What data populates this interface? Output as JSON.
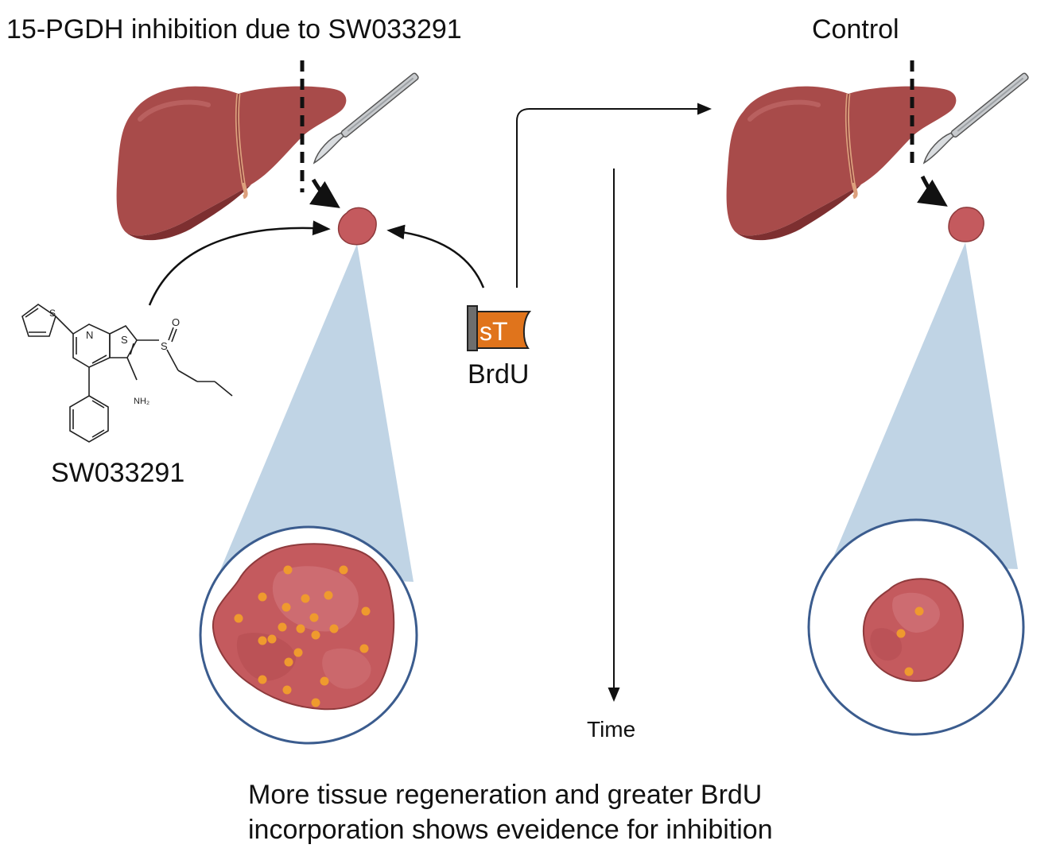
{
  "titles": {
    "treatment": "15-PGDH inhibition due to SW033291",
    "control": "Control"
  },
  "compound": {
    "name": "SW033291",
    "atom_labels": {
      "sulfur_thiophene": "S",
      "nitrogen": "N",
      "sulfur_ring": "S",
      "sulfoxide_s": "S",
      "oxygen": "O",
      "amine": "NH₂"
    }
  },
  "label_tag": {
    "name": "BrdU",
    "glyph": "sT"
  },
  "axis": {
    "label": "Time"
  },
  "caption": {
    "line1": "More tissue regeneration and greater BrdU",
    "line2": "incorporation shows eveidence for inhibition"
  },
  "colors": {
    "liver": "#a84b4a",
    "liver_dark": "#7d2f30",
    "tissue": "#c45a5e",
    "brdu_dot": "#ef9a2e",
    "zoom_cone": "#b9cfe2",
    "circle_stroke": "#3b5c8e",
    "tag_orange": "#e0741c"
  }
}
